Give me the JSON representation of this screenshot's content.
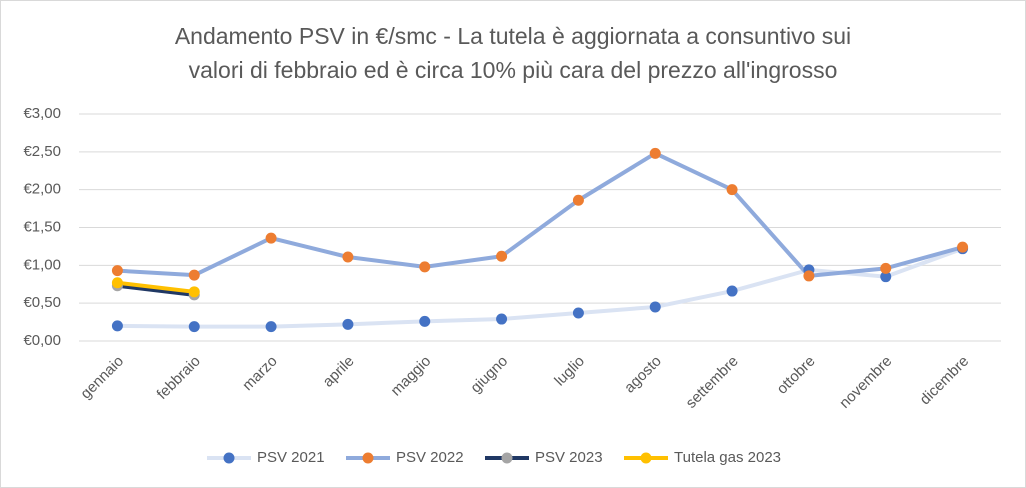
{
  "chart_data": {
    "type": "line",
    "title": [
      "Andamento PSV in €/smc - La tutela è aggiornata a consuntivo sui",
      "valori di febbraio ed è circa 10% più cara del prezzo all'ingrosso"
    ],
    "categories": [
      "gennaio",
      "febbraio",
      "marzo",
      "aprile",
      "maggio",
      "giugno",
      "luglio",
      "agosto",
      "settembre",
      "ottobre",
      "novembre",
      "dicembre"
    ],
    "series": [
      {
        "name": "PSV 2021",
        "color": "#dae3f3",
        "marker_color": "#4472c4",
        "values": [
          0.2,
          0.19,
          0.19,
          0.22,
          0.26,
          0.29,
          0.37,
          0.45,
          0.66,
          0.94,
          0.85,
          1.22
        ]
      },
      {
        "name": "PSV 2022",
        "color": "#8faadc",
        "marker_color": "#ed7d31",
        "values": [
          0.93,
          0.87,
          1.36,
          1.11,
          0.98,
          1.12,
          1.86,
          2.48,
          2.0,
          0.86,
          0.96,
          1.24
        ]
      },
      {
        "name": "PSV 2023",
        "color": "#203864",
        "marker_color": "#a5a5a5",
        "values": [
          0.73,
          0.61,
          null,
          null,
          null,
          null,
          null,
          null,
          null,
          null,
          null,
          null
        ]
      },
      {
        "name": "Tutela gas 2023",
        "color": "#ffc000",
        "marker_color": "#ffc000",
        "values": [
          0.77,
          0.65,
          null,
          null,
          null,
          null,
          null,
          null,
          null,
          null,
          null,
          null
        ]
      }
    ],
    "ylim": [
      0,
      3
    ],
    "yticks": [
      {
        "value": 0,
        "label": "€0,00"
      },
      {
        "value": 0.5,
        "label": "€0,50"
      },
      {
        "value": 1,
        "label": "€1,00"
      },
      {
        "value": 1.5,
        "label": "€1,50"
      },
      {
        "value": 2,
        "label": "€2,00"
      },
      {
        "value": 2.5,
        "label": "€2,50"
      },
      {
        "value": 3,
        "label": "€3,00"
      }
    ],
    "grid": true,
    "legend": "bottom"
  }
}
